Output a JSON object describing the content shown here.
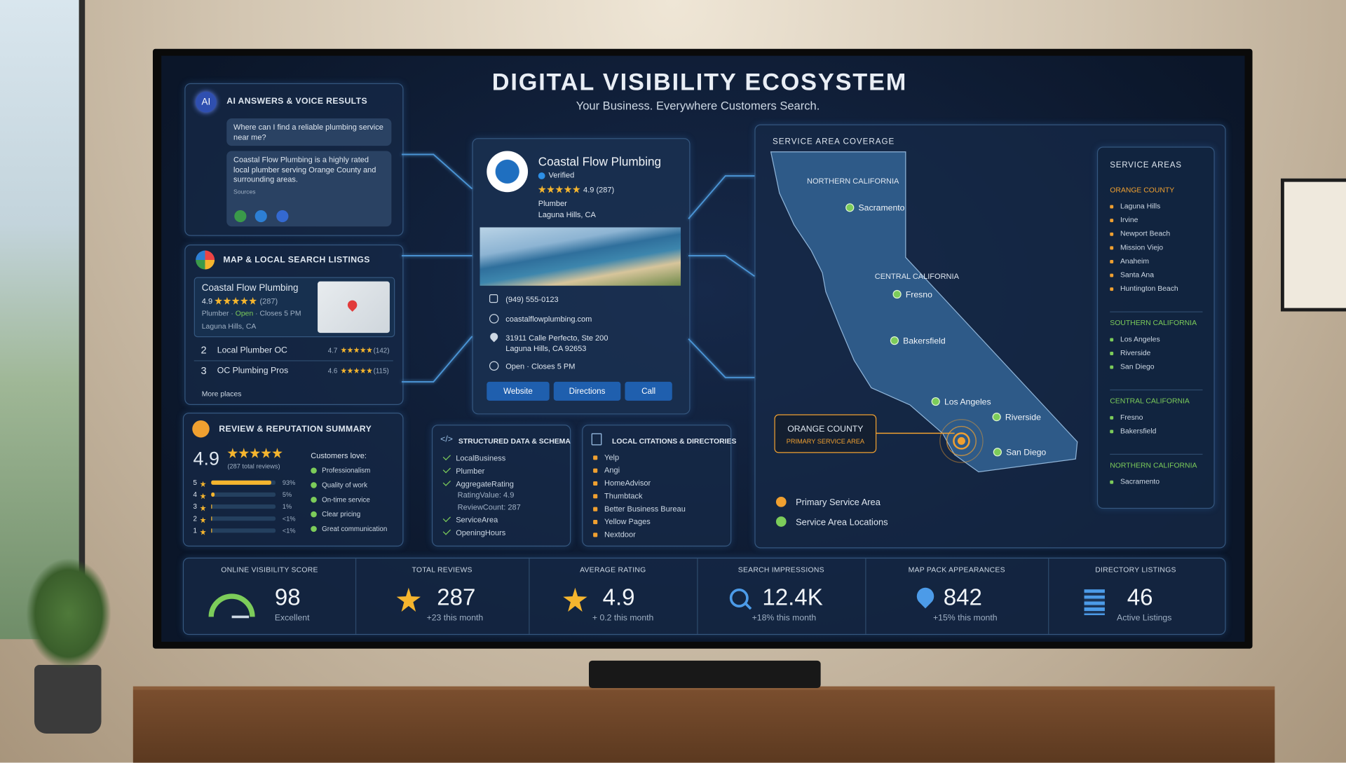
{
  "header": {
    "title": "DIGITAL VISIBILITY ECOSYSTEM",
    "subtitle": "Your Business. Everywhere Customers Search."
  },
  "ai_answers": {
    "title": "AI ANSWERS & VOICE RESULTS",
    "badge": "AI",
    "question": "Where can I find a reliable plumbing service near me?",
    "answer": "Coastal Flow Plumbing is a highly rated local plumber serving Orange County and surrounding areas.",
    "sources_label": "Sources"
  },
  "map_listings": {
    "title": "MAP & LOCAL SEARCH LISTINGS",
    "top": {
      "name": "Coastal Flow Plumbing",
      "rating": "4.9",
      "reviews": "(287)",
      "category": "Plumber",
      "status": "Open",
      "hours": "Closes 5 PM",
      "location": "Laguna Hills, CA"
    },
    "others": [
      {
        "rank": "2",
        "name": "Local Plumber OC",
        "rating": "4.7",
        "reviews": "(142)"
      },
      {
        "rank": "3",
        "name": "OC Plumbing Pros",
        "rating": "4.6",
        "reviews": "(115)"
      }
    ],
    "more": "More places"
  },
  "profile": {
    "name": "Coastal Flow Plumbing",
    "verified": "Verified",
    "rating": "4.9",
    "reviews": "(287)",
    "category": "Plumber",
    "location": "Laguna Hills, CA",
    "phone": "(949) 555-0123",
    "website": "coastalflowplumbing.com",
    "address": [
      "31911 Calle Perfecto, Ste 200",
      "Laguna Hills, CA 92653"
    ],
    "status": "Open",
    "hours": "Closes 5 PM",
    "buttons": [
      "Website",
      "Directions",
      "Call"
    ]
  },
  "reviews": {
    "title": "REVIEW & REPUTATION SUMMARY",
    "rating": "4.9",
    "total": "(287 total reviews)",
    "distribution": [
      {
        "stars": "5",
        "value": 93,
        "label": "93%"
      },
      {
        "stars": "4",
        "value": 5,
        "label": "5%"
      },
      {
        "stars": "3",
        "value": 1,
        "label": "1%"
      },
      {
        "stars": "2",
        "value": 0.5,
        "label": "<1%"
      },
      {
        "stars": "1",
        "value": 0.5,
        "label": "<1%"
      }
    ],
    "love_title": "Customers love:",
    "love": [
      "Professionalism",
      "Quality of work",
      "On-time service",
      "Clear pricing",
      "Great communication"
    ]
  },
  "schema": {
    "title": "STRUCTURED DATA & SCHEMA",
    "items": [
      {
        "label": "LocalBusiness",
        "details": []
      },
      {
        "label": "Plumber",
        "details": []
      },
      {
        "label": "AggregateRating",
        "details": [
          "RatingValue: 4.9",
          "ReviewCount: 287"
        ]
      },
      {
        "label": "ServiceArea",
        "details": []
      },
      {
        "label": "OpeningHours",
        "details": []
      }
    ]
  },
  "citations": {
    "title": "LOCAL CITATIONS & DIRECTORIES",
    "items": [
      "Yelp",
      "Angi",
      "HomeAdvisor",
      "Thumbtack",
      "Better Business Bureau",
      "Yellow Pages",
      "Nextdoor"
    ]
  },
  "coverage": {
    "title": "SERVICE AREA COVERAGE",
    "regions": [
      "NORTHERN CALIFORNIA",
      "CENTRAL CALIFORNIA"
    ],
    "cities": [
      "Sacramento",
      "Fresno",
      "Bakersfield",
      "Los Angeles",
      "Riverside",
      "San Diego"
    ],
    "primary": {
      "name": "ORANGE COUNTY",
      "label": "PRIMARY SERVICE AREA"
    },
    "legend": [
      "Primary Service Area",
      "Service Area Locations"
    ]
  },
  "service_areas": {
    "title": "SERVICE AREAS",
    "groups": [
      {
        "name": "ORANGE COUNTY",
        "color": "#f0a030",
        "cities": [
          "Laguna Hills",
          "Irvine",
          "Newport Beach",
          "Mission Viejo",
          "Anaheim",
          "Santa Ana",
          "Huntington Beach"
        ]
      },
      {
        "name": "SOUTHERN CALIFORNIA",
        "color": "#7ccc5a",
        "cities": [
          "Los Angeles",
          "Riverside",
          "San Diego"
        ]
      },
      {
        "name": "CENTRAL CALIFORNIA",
        "color": "#7ccc5a",
        "cities": [
          "Fresno",
          "Bakersfield"
        ]
      },
      {
        "name": "NORTHERN CALIFORNIA",
        "color": "#7ccc5a",
        "cities": [
          "Sacramento"
        ]
      }
    ]
  },
  "kpis": [
    {
      "label": "ONLINE VISIBILITY SCORE",
      "value": 98,
      "note": "Excellent"
    },
    {
      "label": "TOTAL REVIEWS",
      "value": 287,
      "note": "+23 this month"
    },
    {
      "label": "AVERAGE RATING",
      "value": 4.9,
      "note": "+ 0.2 this month"
    },
    {
      "label": "SEARCH IMPRESSIONS",
      "value": "12.4K",
      "note": "+18% this month"
    },
    {
      "label": "MAP PACK APPEARANCES",
      "value": 842,
      "note": "+15% this month"
    },
    {
      "label": "DIRECTORY LISTINGS",
      "value": 46,
      "note": "Active Listings"
    }
  ]
}
